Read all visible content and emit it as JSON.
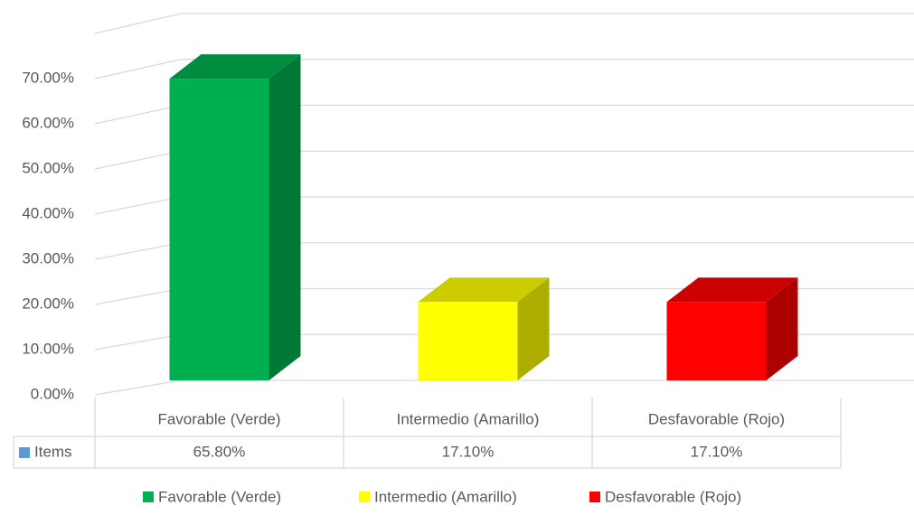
{
  "chart_data": {
    "type": "bar3d",
    "categories": [
      "Favorable (Verde)",
      "Intermedio (Amarillo)",
      "Desfavorable (Rojo)"
    ],
    "series": [
      {
        "name": "Items",
        "color": "#5b9bd5",
        "values": [
          65.8,
          17.1,
          17.1
        ],
        "value_labels": [
          "65.80%",
          "17.10%",
          "17.10%"
        ]
      }
    ],
    "category_colors": [
      "#00b050",
      "#ffff00",
      "#ff0000"
    ],
    "ylim": [
      0,
      80
    ],
    "yticks": [
      {
        "value": 0,
        "label": "0.00%"
      },
      {
        "value": 10,
        "label": "10.00%"
      },
      {
        "value": 20,
        "label": "20.00%"
      },
      {
        "value": 30,
        "label": "30.00%"
      },
      {
        "value": 40,
        "label": "40.00%"
      },
      {
        "value": 50,
        "label": "50.00%"
      },
      {
        "value": 60,
        "label": "60.00%"
      },
      {
        "value": 70,
        "label": "70.00%"
      }
    ],
    "grid": true,
    "data_table": true,
    "legend": "bottom"
  }
}
